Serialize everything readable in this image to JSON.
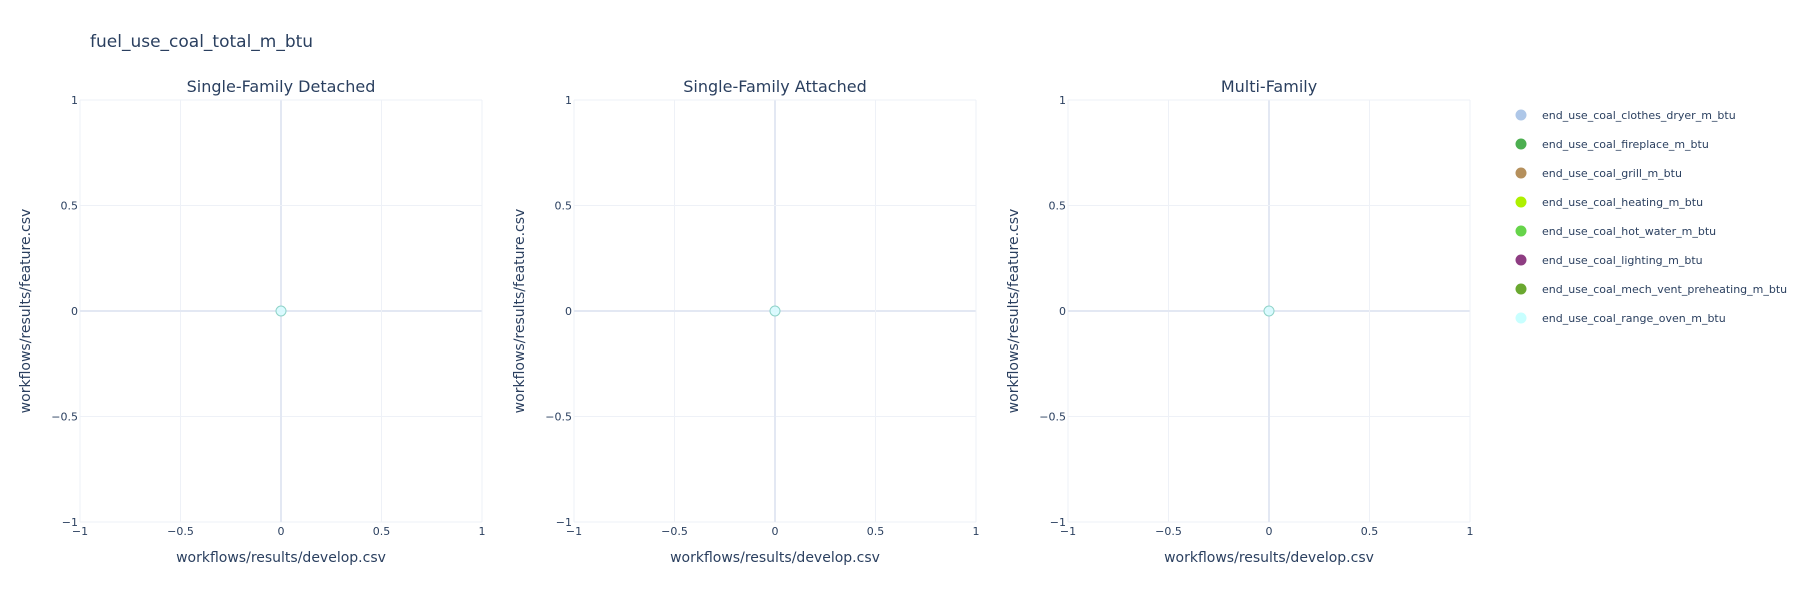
{
  "figure_title": "fuel_use_coal_total_m_btu",
  "legend": [
    {
      "label": "end_use_coal_clothes_dryer_m_btu",
      "color": "#aec7e8"
    },
    {
      "label": "end_use_coal_fireplace_m_btu",
      "color": "#4caf50"
    },
    {
      "label": "end_use_coal_grill_m_btu",
      "color": "#b5905c"
    },
    {
      "label": "end_use_coal_heating_m_btu",
      "color": "#aef000"
    },
    {
      "label": "end_use_coal_hot_water_m_btu",
      "color": "#66d44a"
    },
    {
      "label": "end_use_coal_lighting_m_btu",
      "color": "#8e3d82"
    },
    {
      "label": "end_use_coal_mech_vent_preheating_m_btu",
      "color": "#6aa830"
    },
    {
      "label": "end_use_coal_range_oven_m_btu",
      "color": "#c8ffff"
    }
  ],
  "chart_data": [
    {
      "type": "scatter",
      "title": "Single-Family Detached",
      "xlabel": "workflows/results/develop.csv",
      "ylabel": "workflows/results/feature.csv",
      "xlim": [
        -1,
        1
      ],
      "ylim": [
        -1,
        1
      ],
      "xticks": [
        "−1",
        "−0.5",
        "0",
        "0.5",
        "1"
      ],
      "yticks": [
        "−1",
        "−0.5",
        "0",
        "0.5",
        "1"
      ],
      "grid": true,
      "points": [
        {
          "x": 0,
          "y": 0
        }
      ]
    },
    {
      "type": "scatter",
      "title": "Single-Family Attached",
      "xlabel": "workflows/results/develop.csv",
      "ylabel": "workflows/results/feature.csv",
      "xlim": [
        -1,
        1
      ],
      "ylim": [
        -1,
        1
      ],
      "xticks": [
        "−1",
        "−0.5",
        "0",
        "0.5",
        "1"
      ],
      "yticks": [
        "−1",
        "−0.5",
        "0",
        "0.5",
        "1"
      ],
      "grid": true,
      "points": [
        {
          "x": 0,
          "y": 0
        }
      ]
    },
    {
      "type": "scatter",
      "title": "Multi-Family",
      "xlabel": "workflows/results/develop.csv",
      "ylabel": "workflows/results/feature.csv",
      "xlim": [
        -1,
        1
      ],
      "ylim": [
        -1,
        1
      ],
      "xticks": [
        "−1",
        "−0.5",
        "0",
        "0.5",
        "1"
      ],
      "yticks": [
        "−1",
        "−0.5",
        "0",
        "0.5",
        "1"
      ],
      "grid": true,
      "points": [
        {
          "x": 0,
          "y": 0
        }
      ]
    }
  ]
}
